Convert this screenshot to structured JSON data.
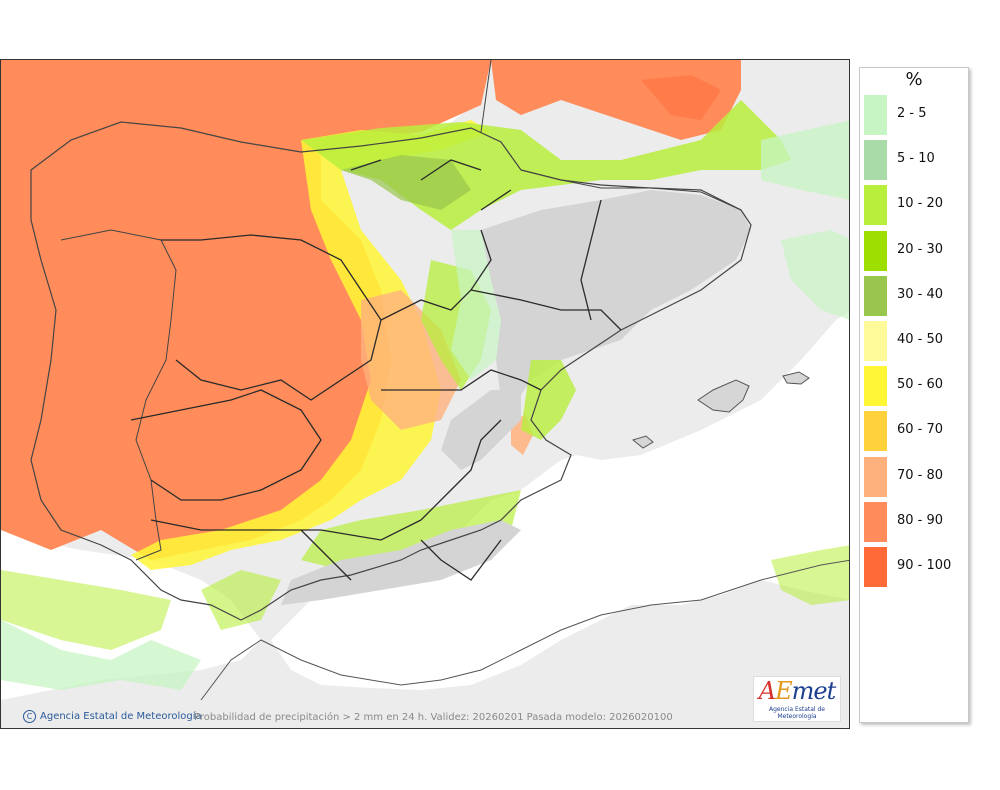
{
  "legend": {
    "unit": "%",
    "items": [
      {
        "label": "2 - 5",
        "color": "#c7f5c4"
      },
      {
        "label": "5 - 10",
        "color": "#a9dba8"
      },
      {
        "label": "10 - 20",
        "color": "#b8ef3c"
      },
      {
        "label": "20 - 30",
        "color": "#9ede00"
      },
      {
        "label": "30 - 40",
        "color": "#99c64c"
      },
      {
        "label": "40 - 50",
        "color": "#fffa99"
      },
      {
        "label": "50 - 60",
        "color": "#fff736"
      },
      {
        "label": "60 - 70",
        "color": "#ffd23c"
      },
      {
        "label": "70 - 80",
        "color": "#ffb17d"
      },
      {
        "label": "80 - 90",
        "color": "#ff8c5a"
      },
      {
        "label": "90 - 100",
        "color": "#ff6a38"
      }
    ]
  },
  "map": {
    "credit": "Agencia Estatal de Meteorología",
    "caption": "Probabilidad de precipitación > 2 mm en 24 h. Validez: 20260201 Pasada modelo: 2026020100",
    "logo_text": "AEmet",
    "logo_sub": "Agencia Estatal de Meteorología"
  },
  "colors": {
    "sea": "#ffffff",
    "land_outside": "#ececec",
    "land_relief": "#d4d4d4",
    "borders": "#222222"
  }
}
